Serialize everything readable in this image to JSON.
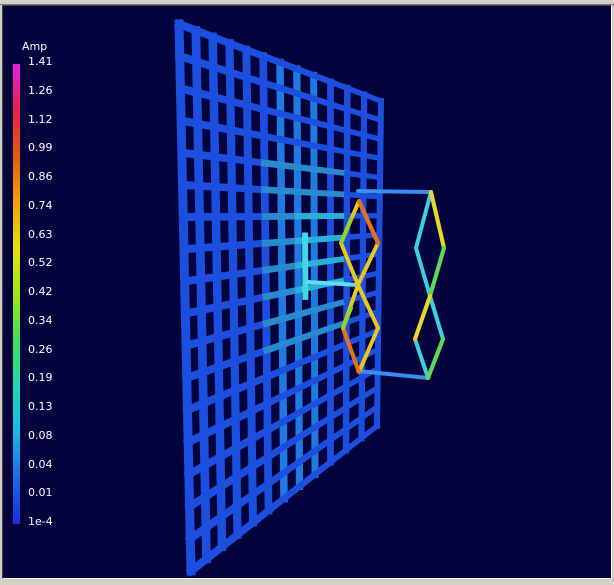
{
  "window": {
    "background": "#d4d0c8",
    "viewport_background": "#03033d"
  },
  "legend": {
    "title": "Amp",
    "ticks": [
      "1.41",
      "1.26",
      "1.12",
      "0.99",
      "0.86",
      "0.74",
      "0.63",
      "0.52",
      "0.42",
      "0.34",
      "0.26",
      "0.19",
      "0.13",
      "0.08",
      "0.04",
      "0.01",
      "1e-4"
    ],
    "gradient_colors": [
      "#e61fe6",
      "#e6204a",
      "#e85a10",
      "#f0a010",
      "#e8e010",
      "#9ee81a",
      "#3ee05a",
      "#20d8b0",
      "#18b8e8",
      "#1c6ae0",
      "#1a2ee0"
    ]
  },
  "scene": {
    "reflector_color": "#1c4fe0",
    "reflector_rows": 17,
    "reflector_cols": 12
  }
}
